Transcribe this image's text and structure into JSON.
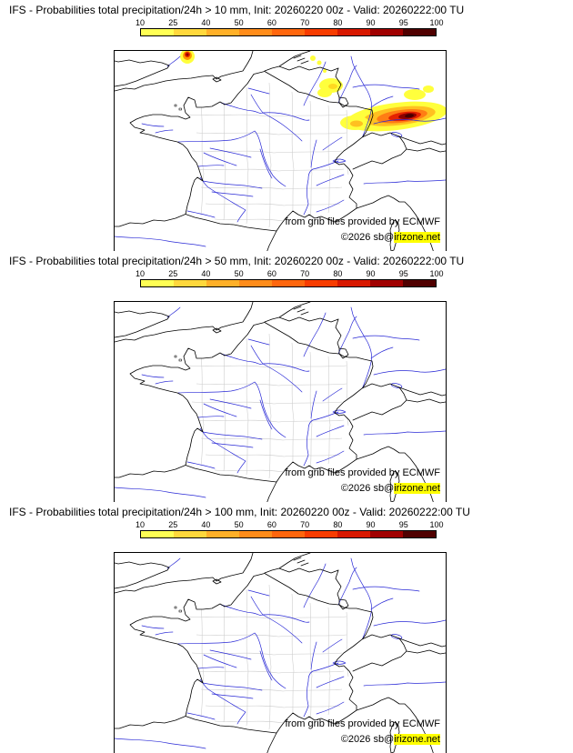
{
  "colors": {
    "river": "#2929d6",
    "border": "#000000",
    "department": "#c9c9c9",
    "highlight": "#ffff00",
    "frame": "#000000"
  },
  "colorbar": {
    "tick_labels": [
      "10",
      "25",
      "40",
      "50",
      "60",
      "70",
      "80",
      "90",
      "95",
      "100"
    ],
    "segment_colors": [
      "#ffff54",
      "#ffd83c",
      "#ffb028",
      "#ff8c1a",
      "#ff660d",
      "#f83c00",
      "#d81800",
      "#a00000",
      "#500000"
    ]
  },
  "panels": [
    {
      "threshold": "> 10 mm",
      "title": "IFS - Probabilities total precipitation/24h > 10 mm, Init: 20260220 00z - Valid: 20260222:00 TU",
      "credit_line": "from grib files provided by ECMWF",
      "copyright_prefix": "©2026 sb@",
      "copyright_highlight": "irizone.net"
    },
    {
      "threshold": "> 50 mm",
      "title": "IFS - Probabilities total precipitation/24h > 50 mm, Init: 20260220 00z - Valid: 20260222:00 TU",
      "credit_line": "from grib files provided by ECMWF",
      "copyright_prefix": "©2026 sb@",
      "copyright_highlight": "irizone.net"
    },
    {
      "threshold": "> 100 mm",
      "title": "IFS - Probabilities total precipitation/24h > 100 mm, Init: 20260220 00z - Valid: 20260222:00 TU",
      "credit_line": "from grib files provided by ECMWF",
      "copyright_prefix": "©2026 sb@",
      "copyright_highlight": "irizone.net"
    }
  ]
}
